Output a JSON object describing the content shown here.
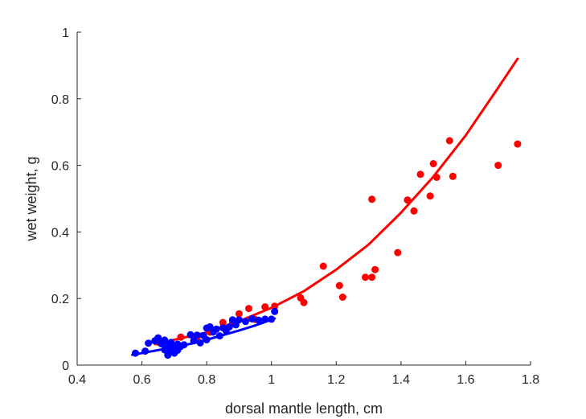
{
  "chart_data": {
    "type": "scatter",
    "xlabel": "dorsal mantle length, cm",
    "ylabel": "wet weight, g",
    "xlim": [
      0.4,
      1.8
    ],
    "ylim": [
      0,
      1
    ],
    "xticks": [
      0.4,
      0.6,
      0.8,
      1.0,
      1.2,
      1.4,
      1.6,
      1.8
    ],
    "xtick_labels": [
      "0.4",
      "0.6",
      "0.8",
      "1",
      "1.2",
      "1.4",
      "1.6",
      "1.8"
    ],
    "yticks": [
      0,
      0.2,
      0.4,
      0.6,
      0.8,
      1.0
    ],
    "ytick_labels": [
      "0",
      "0.2",
      "0.4",
      "0.6",
      "0.8",
      "1"
    ],
    "grid": false,
    "legend": "none",
    "series": [
      {
        "color": "#ff0000",
        "points": [
          [
            0.65,
            0.069
          ],
          [
            0.72,
            0.084
          ],
          [
            0.77,
            0.085
          ],
          [
            0.81,
            0.099
          ],
          [
            0.85,
            0.128
          ],
          [
            0.88,
            0.128
          ],
          [
            0.9,
            0.154
          ],
          [
            0.93,
            0.17
          ],
          [
            0.95,
            0.137
          ],
          [
            0.98,
            0.175
          ],
          [
            1.01,
            0.177
          ],
          [
            1.09,
            0.202
          ],
          [
            1.1,
            0.188
          ],
          [
            1.16,
            0.297
          ],
          [
            1.21,
            0.239
          ],
          [
            1.22,
            0.204
          ],
          [
            1.29,
            0.264
          ],
          [
            1.31,
            0.264
          ],
          [
            1.31,
            0.498
          ],
          [
            1.32,
            0.287
          ],
          [
            1.39,
            0.338
          ],
          [
            1.42,
            0.496
          ],
          [
            1.44,
            0.463
          ],
          [
            1.46,
            0.573
          ],
          [
            1.49,
            0.508
          ],
          [
            1.5,
            0.605
          ],
          [
            1.51,
            0.564
          ],
          [
            1.55,
            0.674
          ],
          [
            1.56,
            0.567
          ],
          [
            1.7,
            0.6
          ],
          [
            1.76,
            0.664
          ]
        ],
        "fit": {
          "x": [
            0.64,
            0.8,
            0.9,
            1.0,
            1.1,
            1.2,
            1.3,
            1.4,
            1.5,
            1.6,
            1.7,
            1.76
          ],
          "y": [
            0.063,
            0.098,
            0.132,
            0.172,
            0.222,
            0.287,
            0.362,
            0.458,
            0.566,
            0.69,
            0.833,
            0.92
          ]
        }
      },
      {
        "color": "#0000ff",
        "points": [
          [
            0.58,
            0.036
          ],
          [
            0.61,
            0.042
          ],
          [
            0.62,
            0.066
          ],
          [
            0.64,
            0.073
          ],
          [
            0.65,
            0.082
          ],
          [
            0.66,
            0.064
          ],
          [
            0.67,
            0.046
          ],
          [
            0.67,
            0.075
          ],
          [
            0.68,
            0.03
          ],
          [
            0.68,
            0.058
          ],
          [
            0.69,
            0.04
          ],
          [
            0.69,
            0.068
          ],
          [
            0.7,
            0.053
          ],
          [
            0.7,
            0.036
          ],
          [
            0.71,
            0.045
          ],
          [
            0.71,
            0.063
          ],
          [
            0.72,
            0.056
          ],
          [
            0.73,
            0.061
          ],
          [
            0.75,
            0.091
          ],
          [
            0.76,
            0.073
          ],
          [
            0.77,
            0.09
          ],
          [
            0.78,
            0.067
          ],
          [
            0.79,
            0.089
          ],
          [
            0.8,
            0.076
          ],
          [
            0.8,
            0.111
          ],
          [
            0.81,
            0.115
          ],
          [
            0.82,
            0.099
          ],
          [
            0.83,
            0.108
          ],
          [
            0.84,
            0.088
          ],
          [
            0.85,
            0.112
          ],
          [
            0.86,
            0.103
          ],
          [
            0.87,
            0.115
          ],
          [
            0.88,
            0.136
          ],
          [
            0.89,
            0.121
          ],
          [
            0.9,
            0.136
          ],
          [
            0.92,
            0.131
          ],
          [
            0.94,
            0.139
          ],
          [
            0.96,
            0.135
          ],
          [
            0.98,
            0.138
          ],
          [
            1.0,
            0.138
          ],
          [
            1.01,
            0.161
          ]
        ],
        "fit": {
          "x": [
            0.57,
            0.65,
            0.7,
            0.75,
            0.8,
            0.85,
            0.9,
            0.95,
            1.01
          ],
          "y": [
            0.031,
            0.045,
            0.054,
            0.064,
            0.076,
            0.09,
            0.104,
            0.119,
            0.14
          ]
        }
      }
    ]
  }
}
